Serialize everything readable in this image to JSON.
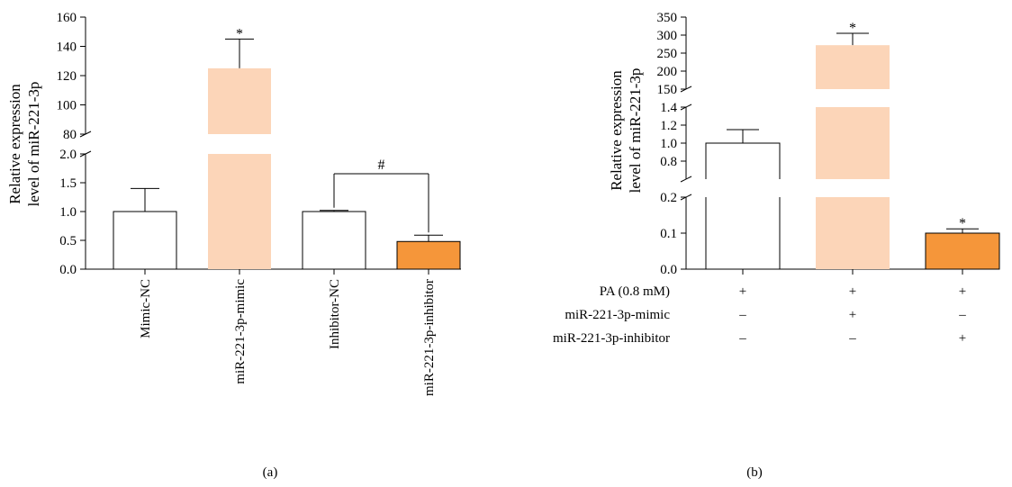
{
  "chart_data": [
    {
      "panel": "(a)",
      "type": "bar",
      "ylabel": [
        "Relative expression",
        "level of miR-221-3p"
      ],
      "categories": [
        "Mimic-NC",
        "miR-221-3p-mimic",
        "Inhibitor-NC",
        "miR-221-3p-inhibitor"
      ],
      "values": [
        1.0,
        125,
        1.0,
        0.48
      ],
      "errors": [
        0.4,
        20,
        0.02,
        0.11
      ],
      "colors": [
        "#ffffff",
        "#fcd5b8",
        "#ffffff",
        "#f5963a"
      ],
      "markers": [
        "",
        "*",
        "",
        ""
      ],
      "bracket": {
        "from": 2,
        "to": 3,
        "label": "#"
      },
      "axis_break": {
        "lower": {
          "ylim": [
            0,
            2.0
          ],
          "ticks": [
            "0.0",
            "0.5",
            "1.0",
            "1.5",
            "2.0"
          ]
        },
        "upper": {
          "ylim": [
            80,
            160
          ],
          "ticks": [
            "80",
            "100",
            "120",
            "140",
            "160"
          ]
        }
      }
    },
    {
      "panel": "(b)",
      "type": "bar",
      "ylabel": [
        "Relative expression",
        "level of miR-221-3p"
      ],
      "values": [
        1.0,
        272,
        0.1
      ],
      "errors": [
        0.15,
        33,
        0.012
      ],
      "colors": [
        "#ffffff",
        "#fcd5b8",
        "#f5963a"
      ],
      "markers": [
        "",
        "*",
        "*"
      ],
      "axis_break": {
        "lower": {
          "ylim": [
            0,
            0.2
          ],
          "ticks": [
            "0.0",
            "0.1",
            "0.2"
          ]
        },
        "middle": {
          "ylim": [
            0.6,
            1.4
          ],
          "ticks": [
            "0.8",
            "1.0",
            "1.2",
            "1.4"
          ]
        },
        "upper": {
          "ylim": [
            150,
            350
          ],
          "ticks": [
            "150",
            "200",
            "250",
            "300",
            "350"
          ]
        }
      },
      "treatment_table": [
        {
          "label": "PA (0.8 mM)",
          "signs": [
            "+",
            "+",
            "+"
          ]
        },
        {
          "label": "miR-221-3p-mimic",
          "signs": [
            "–",
            "+",
            "–"
          ]
        },
        {
          "label": "miR-221-3p-inhibitor",
          "signs": [
            "–",
            "–",
            "+"
          ]
        }
      ]
    }
  ],
  "captions": {
    "a": "(a)",
    "b": "(b)"
  }
}
